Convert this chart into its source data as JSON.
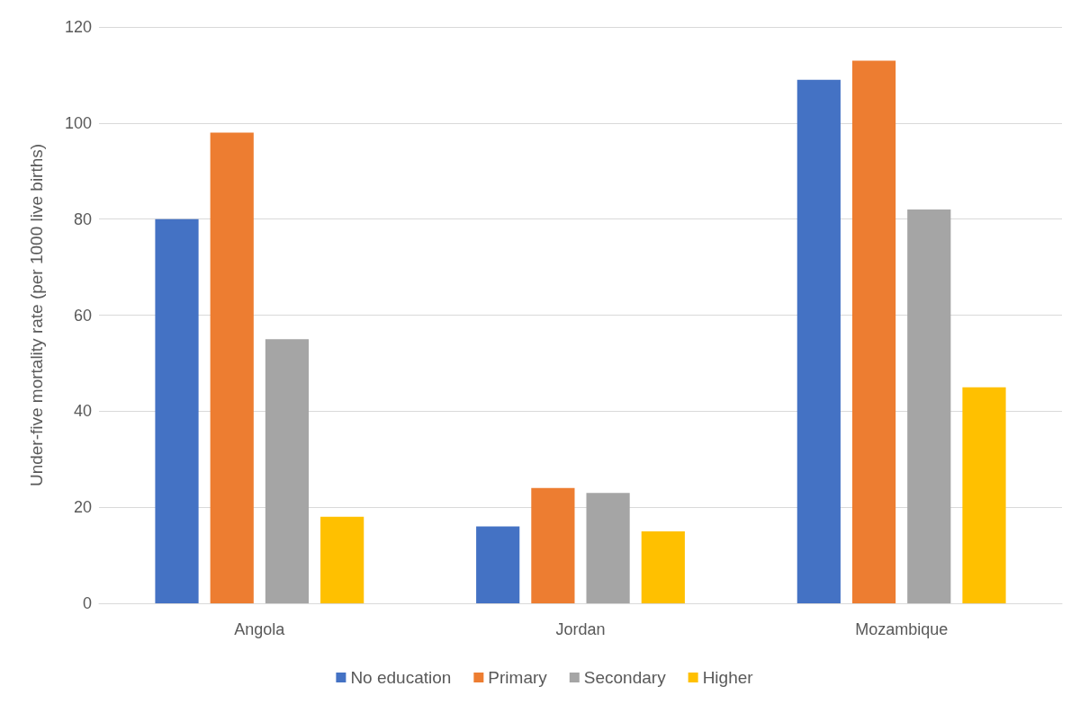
{
  "chart_data": {
    "type": "bar",
    "ylabel": "Under-five mortality rate (per 1000 live births)",
    "categories": [
      "Angola",
      "Jordan",
      "Mozambique"
    ],
    "series": [
      {
        "name": "No education",
        "color": "#4472c4",
        "values": [
          80,
          16,
          109
        ]
      },
      {
        "name": "Primary",
        "color": "#ed7d31",
        "values": [
          98,
          24,
          113
        ]
      },
      {
        "name": "Secondary",
        "color": "#a5a5a5",
        "values": [
          55,
          23,
          82
        ]
      },
      {
        "name": "Higher",
        "color": "#ffc000",
        "values": [
          18,
          15,
          45
        ]
      }
    ],
    "ylim": [
      0,
      120
    ],
    "yticks": [
      0,
      20,
      40,
      60,
      80,
      100,
      120
    ],
    "grid": "y",
    "legend": "bottom"
  }
}
